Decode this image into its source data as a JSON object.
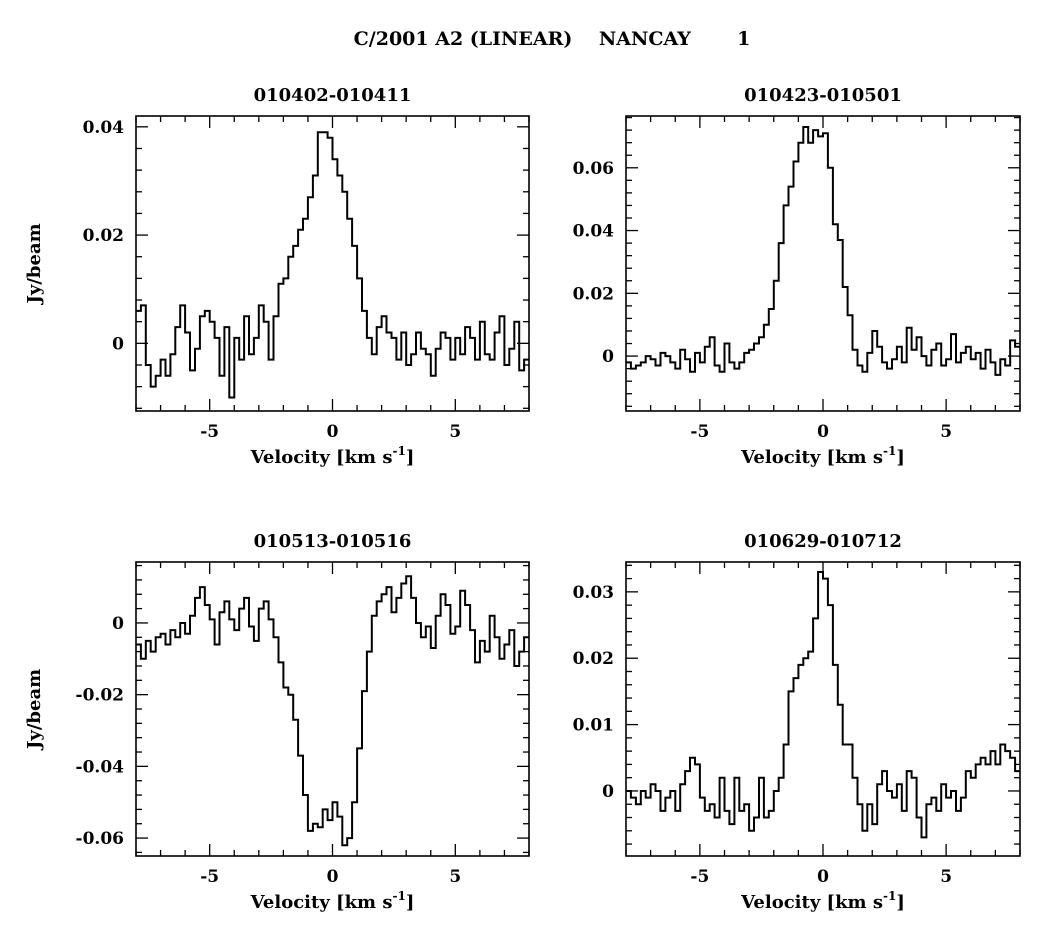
{
  "figure": {
    "title": "C/2001 A2 (LINEAR)    NANCAY       1"
  },
  "chart_data": [
    {
      "type": "line",
      "step": true,
      "title": "010402-010411",
      "xlabel": "Velocity [km s",
      "xlabel_sup": "-1",
      "xlabel_end": "]",
      "ylabel": "Jy/beam",
      "xlim": [
        -8,
        8
      ],
      "ylim": [
        -0.0125,
        0.042
      ],
      "xticks_major": [
        -5,
        0,
        5
      ],
      "xtick_labels": [
        "-5",
        "0",
        "5"
      ],
      "xtick_minor_step": 1,
      "yticks_major": [
        0,
        0.02,
        0.04
      ],
      "ytick_labels": [
        "0",
        "0.02",
        "0.04"
      ],
      "ytick_minor_step": 0.004,
      "x": [
        -8.0,
        -7.8,
        -7.6,
        -7.4,
        -7.2,
        -7.0,
        -6.8,
        -6.6,
        -6.4,
        -6.2,
        -6.0,
        -5.8,
        -5.6,
        -5.4,
        -5.2,
        -5.0,
        -4.8,
        -4.6,
        -4.4,
        -4.2,
        -4.0,
        -3.8,
        -3.6,
        -3.4,
        -3.2,
        -3.0,
        -2.8,
        -2.6,
        -2.4,
        -2.2,
        -2.0,
        -1.8,
        -1.6,
        -1.4,
        -1.2,
        -1.0,
        -0.8,
        -0.6,
        -0.4,
        -0.2,
        0.0,
        0.2,
        0.4,
        0.6,
        0.8,
        1.0,
        1.2,
        1.4,
        1.6,
        1.8,
        2.0,
        2.2,
        2.4,
        2.6,
        2.8,
        3.0,
        3.2,
        3.4,
        3.6,
        3.8,
        4.0,
        4.2,
        4.4,
        4.6,
        4.8,
        5.0,
        5.2,
        5.4,
        5.6,
        5.8,
        6.0,
        6.2,
        6.4,
        6.6,
        6.8,
        7.0,
        7.2,
        7.4,
        7.6,
        7.8
      ],
      "y": [
        0.006,
        0.007,
        -0.004,
        -0.008,
        -0.006,
        -0.003,
        -0.006,
        -0.002,
        0.003,
        0.007,
        0.002,
        -0.005,
        -0.001,
        0.005,
        0.006,
        0.004,
        0.001,
        -0.006,
        0.003,
        -0.01,
        0.001,
        -0.003,
        0.005,
        -0.002,
        0.001,
        0.007,
        0.004,
        -0.003,
        0.005,
        0.011,
        0.012,
        0.016,
        0.018,
        0.021,
        0.023,
        0.027,
        0.031,
        0.039,
        0.039,
        0.038,
        0.034,
        0.031,
        0.028,
        0.023,
        0.018,
        0.012,
        0.006,
        0.001,
        -0.002,
        0.003,
        0.005,
        0.002,
        0.001,
        -0.003,
        0.002,
        -0.004,
        -0.002,
        0.002,
        -0.001,
        -0.002,
        -0.006,
        -0.001,
        0.002,
        0.001,
        -0.003,
        0.001,
        -0.002,
        0.003,
        0.001,
        -0.003,
        0.004,
        -0.002,
        -0.003,
        0.002,
        0.005,
        -0.004,
        -0.001,
        0.004,
        -0.005,
        -0.003
      ]
    },
    {
      "type": "line",
      "step": true,
      "title": "010423-010501",
      "xlabel": "Velocity [km s",
      "xlabel_sup": "-1",
      "xlabel_end": "]",
      "ylabel": "",
      "xlim": [
        -8,
        8
      ],
      "ylim": [
        -0.0175,
        0.0765
      ],
      "xticks_major": [
        -5,
        0,
        5
      ],
      "xtick_labels": [
        "-5",
        "0",
        "5"
      ],
      "xtick_minor_step": 1,
      "yticks_major": [
        0,
        0.02,
        0.04,
        0.06
      ],
      "ytick_labels": [
        "0",
        "0.02",
        "0.04",
        "0.06"
      ],
      "ytick_minor_step": 0.004,
      "x": [
        -8.0,
        -7.8,
        -7.6,
        -7.4,
        -7.2,
        -7.0,
        -6.8,
        -6.6,
        -6.4,
        -6.2,
        -6.0,
        -5.8,
        -5.6,
        -5.4,
        -5.2,
        -5.0,
        -4.8,
        -4.6,
        -4.4,
        -4.2,
        -4.0,
        -3.8,
        -3.6,
        -3.4,
        -3.2,
        -3.0,
        -2.8,
        -2.6,
        -2.4,
        -2.2,
        -2.0,
        -1.8,
        -1.6,
        -1.4,
        -1.2,
        -1.0,
        -0.8,
        -0.6,
        -0.4,
        -0.2,
        0.0,
        0.2,
        0.4,
        0.6,
        0.8,
        1.0,
        1.2,
        1.4,
        1.6,
        1.8,
        2.0,
        2.2,
        2.4,
        2.6,
        2.8,
        3.0,
        3.2,
        3.4,
        3.6,
        3.8,
        4.0,
        4.2,
        4.4,
        4.6,
        4.8,
        5.0,
        5.2,
        5.4,
        5.6,
        5.8,
        6.0,
        6.2,
        6.4,
        6.6,
        6.8,
        7.0,
        7.2,
        7.4,
        7.6,
        7.8
      ],
      "y": [
        -0.002,
        -0.004,
        -0.003,
        -0.002,
        0.0,
        -0.001,
        -0.003,
        0.001,
        0.0,
        -0.002,
        -0.004,
        0.002,
        -0.001,
        -0.005,
        0.001,
        -0.002,
        0.003,
        0.006,
        -0.003,
        -0.005,
        0.004,
        -0.002,
        -0.004,
        -0.002,
        0.001,
        0.002,
        0.004,
        0.006,
        0.01,
        0.015,
        0.024,
        0.036,
        0.048,
        0.054,
        0.062,
        0.068,
        0.073,
        0.068,
        0.072,
        0.07,
        0.071,
        0.06,
        0.042,
        0.037,
        0.022,
        0.013,
        0.002,
        -0.003,
        -0.005,
        0.001,
        0.008,
        0.003,
        -0.002,
        -0.004,
        -0.001,
        0.003,
        -0.002,
        0.009,
        0.002,
        0.006,
        0.0,
        -0.003,
        0.002,
        0.004,
        -0.003,
        -0.001,
        0.007,
        -0.002,
        0.001,
        0.003,
        -0.001,
        0.001,
        -0.004,
        0.002,
        -0.002,
        -0.006,
        -0.001,
        -0.003,
        0.005,
        0.003
      ]
    },
    {
      "type": "line",
      "step": true,
      "title": "010513-010516",
      "xlabel": "Velocity [km s",
      "xlabel_sup": "-1",
      "xlabel_end": "]",
      "ylabel": "Jy/beam",
      "xlim": [
        -8,
        8
      ],
      "ylim": [
        -0.065,
        0.017
      ],
      "xticks_major": [
        -5,
        0,
        5
      ],
      "xtick_labels": [
        "-5",
        "0",
        "5"
      ],
      "xtick_minor_step": 1,
      "yticks_major": [
        0,
        -0.02,
        -0.04,
        -0.06
      ],
      "ytick_labels": [
        "0",
        "-0.02",
        "-0.04",
        "-0.06"
      ],
      "ytick_minor_step": 0.004,
      "x": [
        -8.0,
        -7.8,
        -7.6,
        -7.4,
        -7.2,
        -7.0,
        -6.8,
        -6.6,
        -6.4,
        -6.2,
        -6.0,
        -5.8,
        -5.6,
        -5.4,
        -5.2,
        -5.0,
        -4.8,
        -4.6,
        -4.4,
        -4.2,
        -4.0,
        -3.8,
        -3.6,
        -3.4,
        -3.2,
        -3.0,
        -2.8,
        -2.6,
        -2.4,
        -2.2,
        -2.0,
        -1.8,
        -1.6,
        -1.4,
        -1.2,
        -1.0,
        -0.8,
        -0.6,
        -0.4,
        -0.2,
        0.0,
        0.2,
        0.4,
        0.6,
        0.8,
        1.0,
        1.2,
        1.4,
        1.6,
        1.8,
        2.0,
        2.2,
        2.4,
        2.6,
        2.8,
        3.0,
        3.2,
        3.4,
        3.6,
        3.8,
        4.0,
        4.2,
        4.4,
        4.6,
        4.8,
        5.0,
        5.2,
        5.4,
        5.6,
        5.8,
        6.0,
        6.2,
        6.4,
        6.6,
        6.8,
        7.0,
        7.2,
        7.4,
        7.6,
        7.8
      ],
      "y": [
        -0.006,
        -0.01,
        -0.005,
        -0.008,
        -0.004,
        -0.003,
        -0.006,
        -0.002,
        -0.004,
        0.0,
        -0.003,
        0.002,
        0.007,
        0.01,
        0.005,
        0.001,
        -0.006,
        0.003,
        0.006,
        0.001,
        -0.002,
        0.004,
        0.007,
        -0.001,
        -0.005,
        0.004,
        0.006,
        0.001,
        -0.004,
        -0.011,
        -0.018,
        -0.02,
        -0.027,
        -0.037,
        -0.048,
        -0.058,
        -0.056,
        -0.057,
        -0.052,
        -0.055,
        -0.05,
        -0.054,
        -0.062,
        -0.06,
        -0.05,
        -0.035,
        -0.019,
        -0.008,
        0.002,
        0.006,
        0.008,
        0.01,
        0.003,
        0.007,
        0.011,
        0.013,
        0.007,
        0.0,
        -0.004,
        -0.001,
        -0.007,
        0.002,
        0.008,
        0.005,
        -0.003,
        -0.001,
        0.009,
        0.005,
        -0.002,
        -0.011,
        -0.005,
        -0.008,
        0.002,
        -0.004,
        -0.01,
        -0.006,
        -0.002,
        -0.012,
        -0.008,
        -0.004
      ]
    },
    {
      "type": "line",
      "step": true,
      "title": "010629-010712",
      "xlabel": "Velocity [km s",
      "xlabel_sup": "-1",
      "xlabel_end": "]",
      "ylabel": "",
      "xlim": [
        -8,
        8
      ],
      "ylim": [
        -0.0098,
        0.0345
      ],
      "xticks_major": [
        -5,
        0,
        5
      ],
      "xtick_labels": [
        "-5",
        "0",
        "5"
      ],
      "xtick_minor_step": 1,
      "yticks_major": [
        0,
        0.01,
        0.02,
        0.03
      ],
      "ytick_labels": [
        "0",
        "0.01",
        "0.02",
        "0.03"
      ],
      "ytick_minor_step": 0.002,
      "x": [
        -8.0,
        -7.8,
        -7.6,
        -7.4,
        -7.2,
        -7.0,
        -6.8,
        -6.6,
        -6.4,
        -6.2,
        -6.0,
        -5.8,
        -5.6,
        -5.4,
        -5.2,
        -5.0,
        -4.8,
        -4.6,
        -4.4,
        -4.2,
        -4.0,
        -3.8,
        -3.6,
        -3.4,
        -3.2,
        -3.0,
        -2.8,
        -2.6,
        -2.4,
        -2.2,
        -2.0,
        -1.8,
        -1.6,
        -1.4,
        -1.2,
        -1.0,
        -0.8,
        -0.6,
        -0.4,
        -0.2,
        0.0,
        0.2,
        0.4,
        0.6,
        0.8,
        1.0,
        1.2,
        1.4,
        1.6,
        1.8,
        2.0,
        2.2,
        2.4,
        2.6,
        2.8,
        3.0,
        3.2,
        3.4,
        3.6,
        3.8,
        4.0,
        4.2,
        4.4,
        4.6,
        4.8,
        5.0,
        5.2,
        5.4,
        5.6,
        5.8,
        6.0,
        6.2,
        6.4,
        6.6,
        6.8,
        7.0,
        7.2,
        7.4,
        7.6,
        7.8
      ],
      "y": [
        0.0,
        -0.001,
        -0.002,
        0.0,
        -0.001,
        0.001,
        0.0,
        -0.003,
        -0.001,
        0.0,
        -0.003,
        0.001,
        0.003,
        0.005,
        0.004,
        -0.001,
        -0.003,
        -0.002,
        -0.004,
        0.002,
        -0.003,
        -0.005,
        0.002,
        -0.003,
        -0.002,
        -0.006,
        -0.004,
        0.002,
        -0.004,
        -0.003,
        0.0,
        0.002,
        0.007,
        0.015,
        0.017,
        0.019,
        0.02,
        0.021,
        0.026,
        0.033,
        0.032,
        0.028,
        0.019,
        0.013,
        0.007,
        0.007,
        0.002,
        -0.002,
        -0.006,
        -0.002,
        -0.005,
        0.001,
        0.003,
        0.0,
        -0.001,
        0.001,
        -0.003,
        0.003,
        0.002,
        -0.004,
        -0.007,
        -0.002,
        -0.001,
        -0.003,
        0.001,
        -0.001,
        0.0,
        -0.003,
        -0.001,
        0.003,
        0.002,
        0.004,
        0.005,
        0.004,
        0.006,
        0.004,
        0.007,
        0.006,
        0.005,
        0.003
      ]
    }
  ]
}
